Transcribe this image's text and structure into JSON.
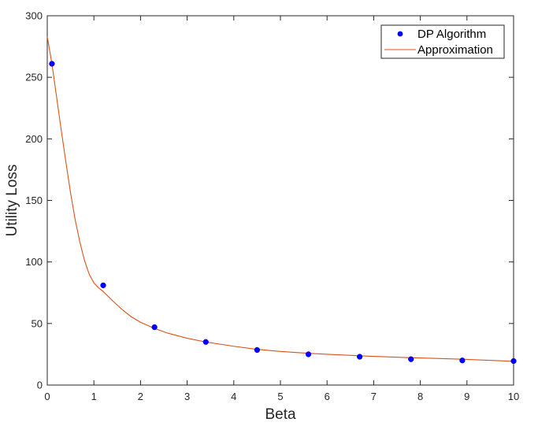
{
  "chart_data": {
    "type": "line",
    "title": "",
    "xlabel": "Beta",
    "ylabel": "Utility Loss",
    "xlim": [
      0,
      10
    ],
    "ylim": [
      0,
      300
    ],
    "xticks": [
      0,
      1,
      2,
      3,
      4,
      5,
      6,
      7,
      8,
      9,
      10
    ],
    "yticks": [
      0,
      50,
      100,
      150,
      200,
      250,
      300
    ],
    "grid": false,
    "legend_position": "top-right",
    "series": [
      {
        "name": "DP Algorithm",
        "style": "markers",
        "color": "#0000ff",
        "x": [
          0.1,
          1.2,
          2.3,
          3.4,
          4.5,
          5.6,
          6.7,
          7.8,
          8.9,
          10.0
        ],
        "y": [
          261,
          81,
          47,
          35,
          28.5,
          25,
          23,
          21,
          20,
          19.5
        ]
      },
      {
        "name": "Approximation",
        "style": "line",
        "color": "#d95319",
        "x": [
          0,
          0.05,
          0.1,
          0.2,
          0.3,
          0.4,
          0.5,
          0.6,
          0.7,
          0.8,
          0.9,
          1.0,
          1.1,
          1.2,
          1.4,
          1.6,
          1.8,
          2.0,
          2.3,
          2.6,
          3.0,
          3.4,
          4.0,
          4.5,
          5.0,
          5.6,
          6.0,
          6.7,
          7.0,
          7.8,
          8.0,
          8.9,
          9.0,
          10.0
        ],
        "y": [
          283,
          272,
          261,
          234,
          207,
          181,
          156,
          134,
          116,
          101,
          90,
          83,
          79,
          76,
          68.5,
          61.5,
          55.5,
          51,
          46,
          42,
          38,
          35,
          31.5,
          29,
          27.3,
          25.8,
          25,
          23.8,
          23.3,
          22.2,
          22,
          21,
          20.8,
          19.3
        ]
      }
    ]
  }
}
